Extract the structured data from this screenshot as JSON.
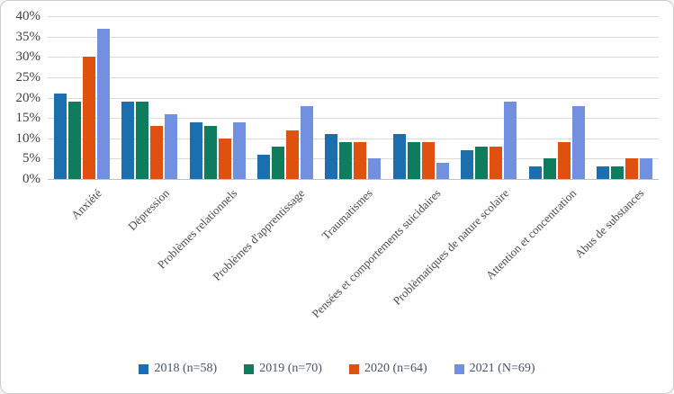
{
  "chart_data": {
    "type": "bar",
    "title": "",
    "xlabel": "",
    "ylabel": "",
    "ylim": [
      0,
      40
    ],
    "ytick_step": 5,
    "ytick_suffix": "%",
    "grid": true,
    "legend_position": "bottom",
    "categories": [
      "Anxiété",
      "Dépression",
      "Problèmes relationnels",
      "Problèmes d'apprentissage",
      "Traumatismes",
      "Pensées et comportements suicidaires",
      "Problèmatiques de nature scolaire",
      "Attention et concentration",
      "Abus de substances"
    ],
    "series": [
      {
        "name": "2018 (n=58)",
        "color": "#1C6FAF",
        "values": [
          21,
          19,
          14,
          6,
          11,
          11,
          7,
          3,
          3
        ]
      },
      {
        "name": "2019 (n=70)",
        "color": "#0E7C5D",
        "values": [
          19,
          19,
          13,
          8,
          9,
          9,
          8,
          5,
          3
        ]
      },
      {
        "name": "2020 (n=64)",
        "color": "#E0500E",
        "values": [
          30,
          13,
          10,
          12,
          9,
          9,
          8,
          9,
          5
        ]
      },
      {
        "name": "2021 (N=69)",
        "color": "#7191E0",
        "values": [
          37,
          16,
          14,
          18,
          5,
          4,
          19,
          18,
          5
        ]
      }
    ]
  }
}
